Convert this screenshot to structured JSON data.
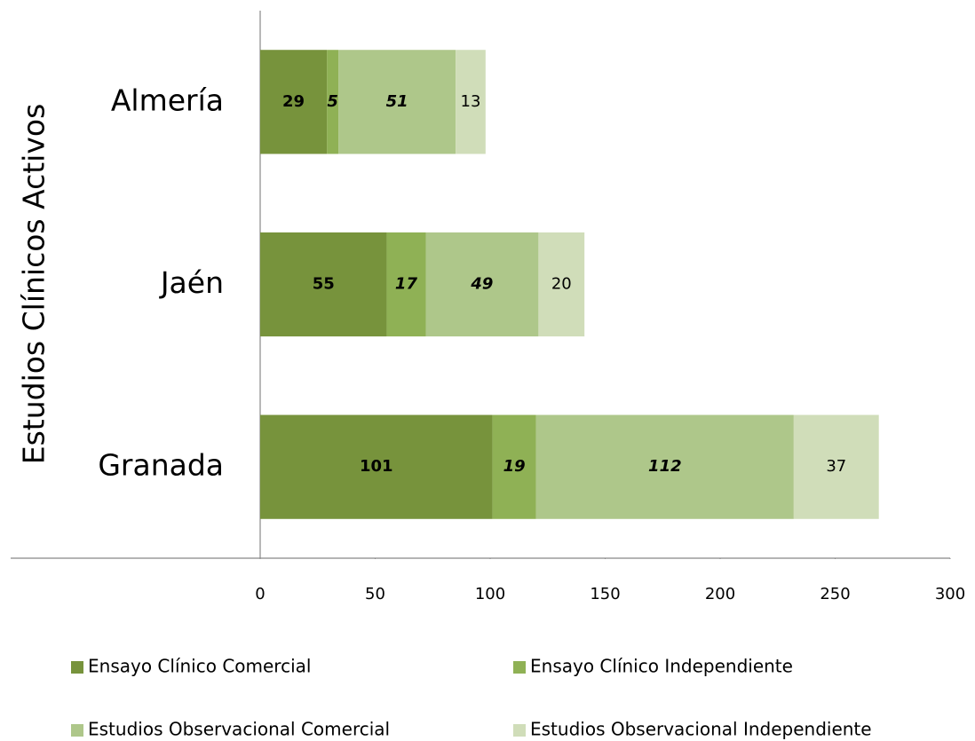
{
  "chart_data": {
    "type": "bar",
    "orientation": "horizontal",
    "stacked": true,
    "y_axis_label": "Estudios Clínicos Activos",
    "categories": [
      "Almería",
      "Jaén",
      "Granada"
    ],
    "series": [
      {
        "name": "Ensayo Clínico Comercial",
        "color": "#77933c",
        "values": [
          29,
          55,
          101
        ]
      },
      {
        "name": "Ensayo Clínico Independiente",
        "color": "#8fb155",
        "values": [
          5,
          17,
          19
        ]
      },
      {
        "name": "Estudios Observacional Comercial",
        "color": "#aec78a",
        "values": [
          51,
          49,
          112
        ]
      },
      {
        "name": "Estudios Observacional Independiente",
        "color": "#d0ddb9",
        "values": [
          13,
          20,
          37
        ]
      }
    ],
    "xlim": [
      0,
      300
    ],
    "xticks": [
      0,
      50,
      100,
      150,
      200,
      250,
      300
    ],
    "legend": "bottom"
  }
}
